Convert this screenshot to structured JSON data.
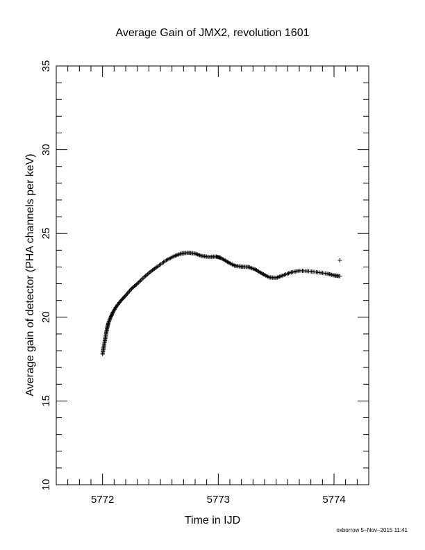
{
  "chart_data": {
    "type": "scatter",
    "title": "Average Gain of JMX2, revolution 1601",
    "xlabel": "Time in IJD",
    "ylabel": "Average gain of detector (PHA channels per keV)",
    "xlim": [
      5771.6,
      5774.3
    ],
    "ylim": [
      10,
      35
    ],
    "xticks": [
      5772,
      5773,
      5774
    ],
    "yticks": [
      10,
      15,
      20,
      25,
      30,
      35
    ],
    "marker": "+",
    "color": "#000000",
    "grid": false,
    "curve_points": [
      [
        5772.0,
        17.8
      ],
      [
        5772.01,
        18.2
      ],
      [
        5772.02,
        18.6
      ],
      [
        5772.03,
        19.0
      ],
      [
        5772.04,
        19.35
      ],
      [
        5772.05,
        19.65
      ],
      [
        5772.07,
        20.0
      ],
      [
        5772.09,
        20.3
      ],
      [
        5772.12,
        20.65
      ],
      [
        5772.16,
        21.0
      ],
      [
        5772.2,
        21.3
      ],
      [
        5772.25,
        21.7
      ],
      [
        5772.3,
        22.0
      ],
      [
        5772.36,
        22.4
      ],
      [
        5772.42,
        22.75
      ],
      [
        5772.48,
        23.05
      ],
      [
        5772.55,
        23.4
      ],
      [
        5772.62,
        23.65
      ],
      [
        5772.68,
        23.8
      ],
      [
        5772.74,
        23.85
      ],
      [
        5772.8,
        23.8
      ],
      [
        5772.86,
        23.65
      ],
      [
        5772.92,
        23.6
      ],
      [
        5772.98,
        23.62
      ],
      [
        5773.02,
        23.55
      ],
      [
        5773.08,
        23.3
      ],
      [
        5773.14,
        23.08
      ],
      [
        5773.2,
        23.02
      ],
      [
        5773.26,
        23.0
      ],
      [
        5773.32,
        22.85
      ],
      [
        5773.38,
        22.6
      ],
      [
        5773.44,
        22.38
      ],
      [
        5773.5,
        22.35
      ],
      [
        5773.56,
        22.5
      ],
      [
        5773.63,
        22.68
      ],
      [
        5773.7,
        22.78
      ],
      [
        5773.78,
        22.75
      ],
      [
        5773.86,
        22.68
      ],
      [
        5773.94,
        22.6
      ],
      [
        5774.0,
        22.5
      ],
      [
        5774.05,
        22.45
      ]
    ],
    "outlier": [
      5774.05,
      23.4
    ]
  },
  "footer": {
    "text": "oxborrow  5−Nov−2015 11:41"
  }
}
